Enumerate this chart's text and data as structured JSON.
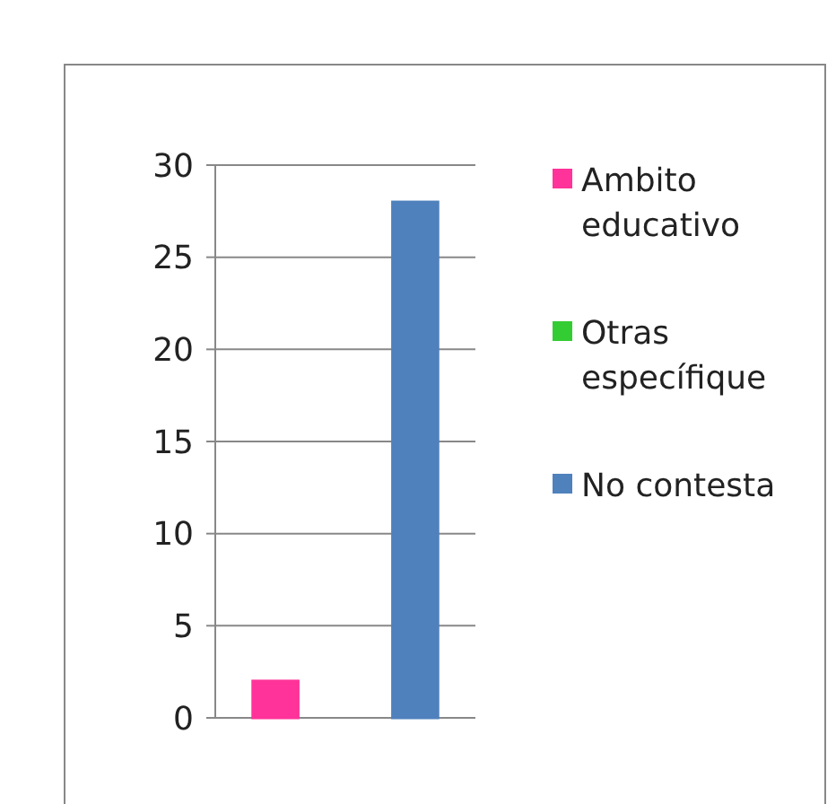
{
  "chart_data": {
    "type": "bar",
    "categories": [
      null
    ],
    "series": [
      {
        "name": "Ambito educativo",
        "color": "#ff3399",
        "values": [
          2
        ]
      },
      {
        "name": "Otras específique",
        "color": "#33cc33",
        "values": [
          0
        ]
      },
      {
        "name": "No contesta",
        "color": "#4f81bd",
        "values": [
          28
        ]
      }
    ],
    "ylim": [
      0,
      30
    ],
    "yticks": [
      0,
      5,
      10,
      15,
      20,
      25,
      30
    ],
    "grid": "y",
    "legend": "right"
  }
}
